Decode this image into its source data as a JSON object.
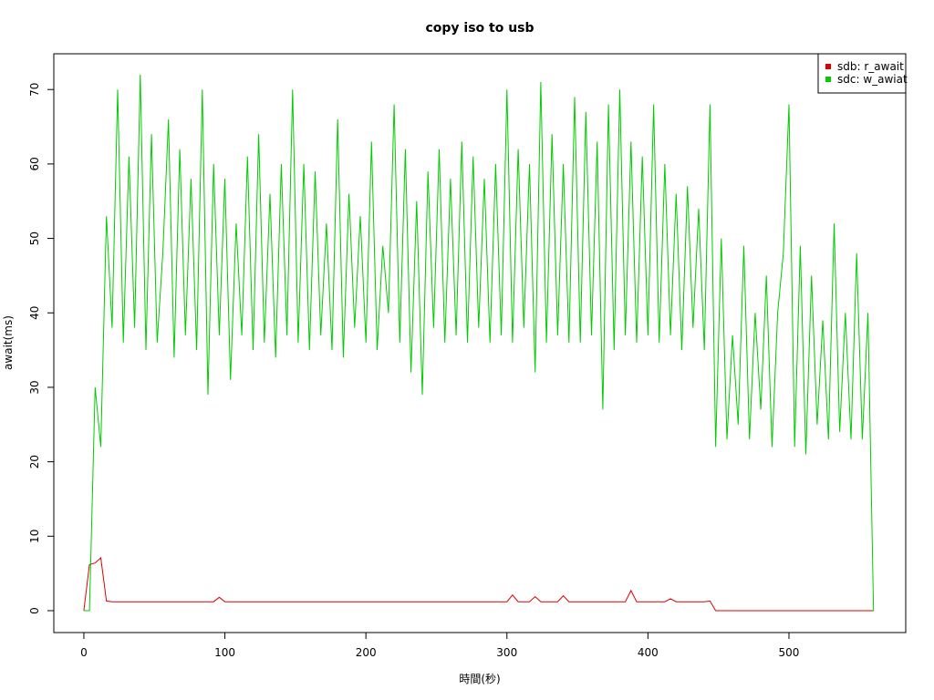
{
  "chart_data": {
    "type": "line",
    "title": "copy iso to usb",
    "x_label": "時間(秒)",
    "y_label": "await(ms)",
    "x": [
      0,
      4,
      8,
      12,
      16,
      20,
      24,
      28,
      32,
      36,
      40,
      44,
      48,
      52,
      56,
      60,
      64,
      68,
      72,
      76,
      80,
      84,
      88,
      92,
      96,
      100,
      104,
      108,
      112,
      116,
      120,
      124,
      128,
      132,
      136,
      140,
      144,
      148,
      152,
      156,
      160,
      164,
      168,
      172,
      176,
      180,
      184,
      188,
      192,
      196,
      200,
      204,
      208,
      212,
      216,
      220,
      224,
      228,
      232,
      236,
      240,
      244,
      248,
      252,
      256,
      260,
      264,
      268,
      272,
      276,
      280,
      284,
      288,
      292,
      296,
      300,
      304,
      308,
      312,
      316,
      320,
      324,
      328,
      332,
      336,
      340,
      344,
      348,
      352,
      356,
      360,
      364,
      368,
      372,
      376,
      380,
      384,
      388,
      392,
      396,
      400,
      404,
      408,
      412,
      416,
      420,
      424,
      428,
      432,
      436,
      440,
      444,
      448,
      452,
      456,
      460,
      464,
      468,
      472,
      476,
      480,
      484,
      488,
      492,
      496,
      500,
      504,
      508,
      512,
      516,
      520,
      524,
      528,
      532,
      536,
      540,
      544,
      548,
      552,
      556,
      560
    ],
    "series": [
      {
        "name": "sdb: r_await",
        "color": "#dd0000",
        "values": [
          0,
          6.2,
          6.4,
          7.1,
          1.3,
          1.2,
          1.2,
          1.2,
          1.2,
          1.2,
          1.2,
          1.2,
          1.2,
          1.2,
          1.2,
          1.2,
          1.2,
          1.2,
          1.2,
          1.2,
          1.2,
          1.2,
          1.2,
          1.2,
          1.8,
          1.2,
          1.2,
          1.2,
          1.2,
          1.2,
          1.2,
          1.2,
          1.2,
          1.2,
          1.2,
          1.2,
          1.2,
          1.2,
          1.2,
          1.2,
          1.2,
          1.2,
          1.2,
          1.2,
          1.2,
          1.2,
          1.2,
          1.2,
          1.2,
          1.2,
          1.2,
          1.2,
          1.2,
          1.2,
          1.2,
          1.2,
          1.2,
          1.2,
          1.2,
          1.2,
          1.2,
          1.2,
          1.2,
          1.2,
          1.2,
          1.2,
          1.2,
          1.2,
          1.2,
          1.2,
          1.2,
          1.2,
          1.2,
          1.2,
          1.2,
          1.2,
          2.1,
          1.2,
          1.2,
          1.2,
          1.9,
          1.2,
          1.2,
          1.2,
          1.2,
          2.0,
          1.2,
          1.2,
          1.2,
          1.2,
          1.2,
          1.2,
          1.2,
          1.2,
          1.2,
          1.2,
          1.2,
          2.7,
          1.2,
          1.2,
          1.2,
          1.2,
          1.2,
          1.2,
          1.6,
          1.2,
          1.2,
          1.2,
          1.2,
          1.2,
          1.2,
          1.3,
          0,
          0,
          0,
          0,
          0,
          0,
          0,
          0,
          0,
          0,
          0,
          0,
          0,
          0,
          0,
          0,
          0,
          0,
          0,
          0,
          0,
          0,
          0,
          0,
          0,
          0,
          0,
          0,
          0
        ]
      },
      {
        "name": "sdc: w_awiat",
        "color": "#00cc00",
        "values": [
          0,
          0,
          30,
          22,
          53,
          38,
          70,
          36,
          61,
          38,
          72,
          35,
          64,
          36,
          48,
          66,
          34,
          62,
          37,
          58,
          35,
          70,
          29,
          60,
          37,
          58,
          31,
          52,
          37,
          61,
          35,
          64,
          36,
          56,
          34,
          60,
          37,
          70,
          36,
          60,
          35,
          59,
          37,
          52,
          35,
          66,
          34,
          56,
          38,
          53,
          36,
          63,
          35,
          49,
          40,
          68,
          36,
          62,
          32,
          55,
          29,
          59,
          38,
          62,
          36,
          58,
          37,
          63,
          36,
          61,
          38,
          58,
          36,
          60,
          37,
          70,
          36,
          62,
          38,
          60,
          32,
          71,
          36,
          64,
          37,
          60,
          36,
          69,
          36,
          67,
          37,
          63,
          27,
          68,
          35,
          70,
          37,
          63,
          36,
          61,
          37,
          68,
          36,
          60,
          37,
          56,
          35,
          57,
          38,
          54,
          35,
          68,
          22,
          50,
          23,
          37,
          25,
          49,
          23,
          40,
          27,
          45,
          22,
          40,
          48,
          68,
          22,
          49,
          21,
          45,
          25,
          39,
          23,
          52,
          24,
          40,
          23,
          48,
          23,
          40,
          0
        ]
      }
    ],
    "xlim": [
      -21.3,
      582.8
    ],
    "ylim": [
      -2.94,
      74.8
    ],
    "xticks": [
      0,
      100,
      200,
      300,
      400,
      500
    ],
    "yticks": [
      0,
      10,
      20,
      30,
      40,
      50,
      60,
      70
    ],
    "legend": "top-right"
  }
}
